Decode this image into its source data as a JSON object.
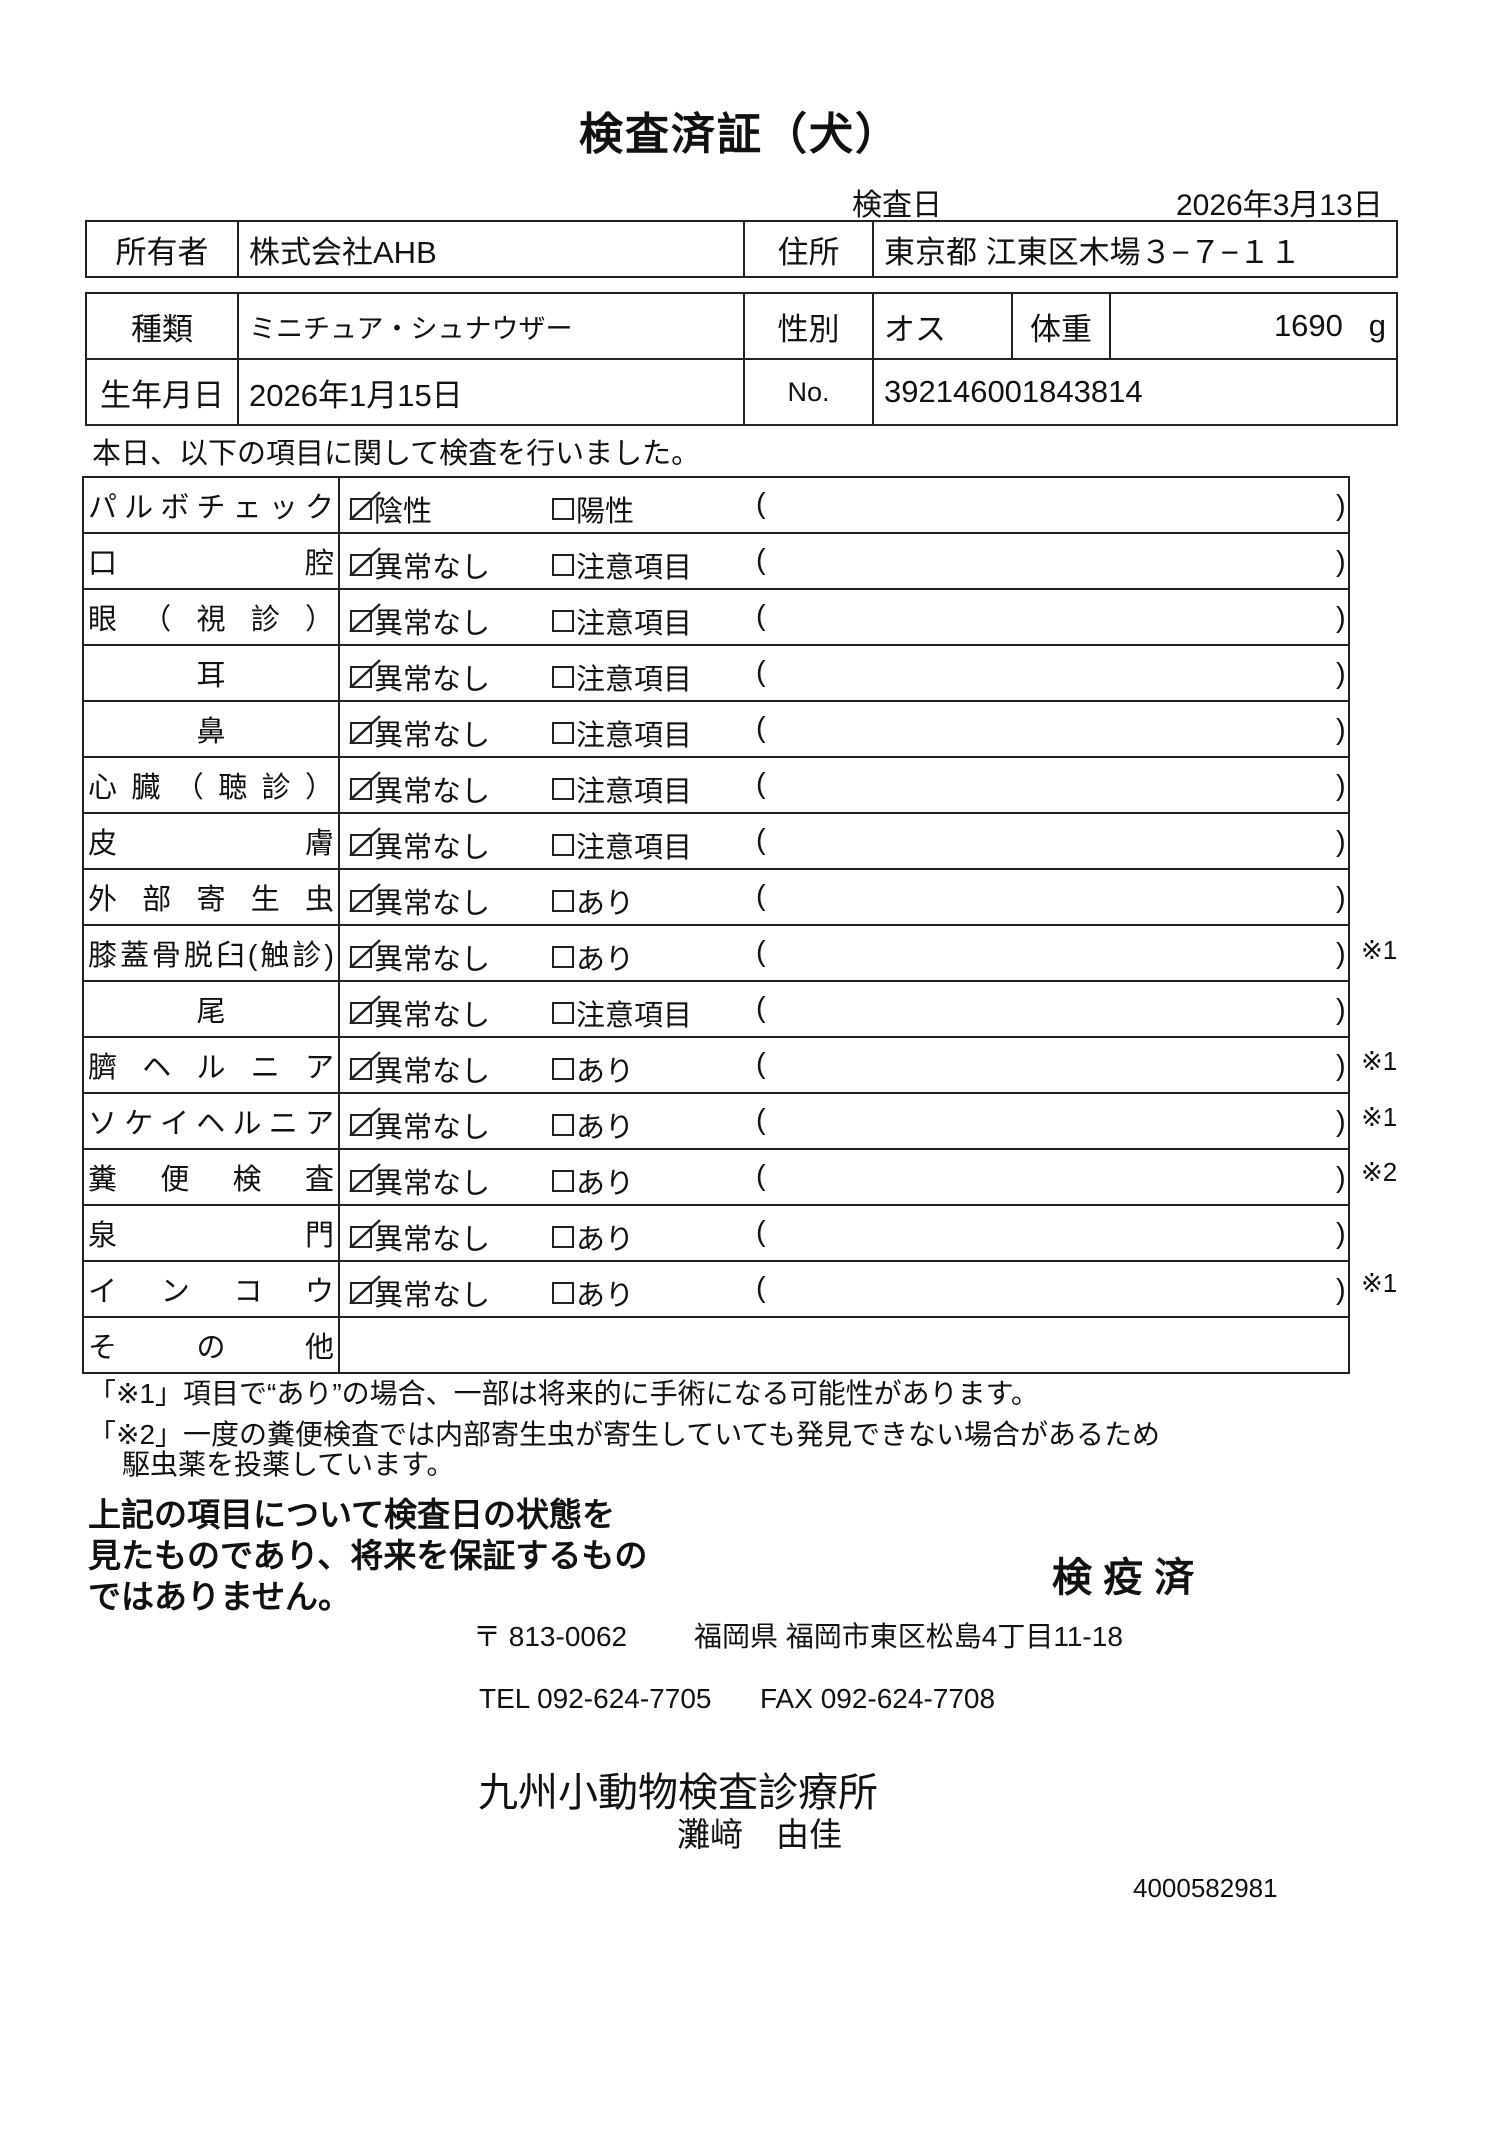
{
  "title": "検査済証（犬）",
  "exam_date": {
    "label": "検査日",
    "value": "2026年3月13日"
  },
  "owner": {
    "label": "所有者",
    "value": "株式会社AHB",
    "address_label": "住所",
    "address": "東京都 江東区木場３−７−１１"
  },
  "animal": {
    "breed_label": "種類",
    "breed": "ミニチュア・シュナウザー",
    "sex_label": "性別",
    "sex": "オス",
    "weight_label": "体重",
    "weight": "1690",
    "weight_unit": "g",
    "dob_label": "生年月日",
    "dob": "2026年1月15日",
    "no_label": "No.",
    "no": "392146001843814"
  },
  "intro": "本日、以下の項目に関して検査を行いました。",
  "paren_open": "(",
  "paren_close": ")",
  "checks": [
    {
      "label": "パルボチェック",
      "opt1": "陰性",
      "opt2": "陽性",
      "checked": 1,
      "note": ""
    },
    {
      "label": "口腔",
      "opt1": "異常なし",
      "opt2": "注意項目",
      "checked": 1,
      "note": ""
    },
    {
      "label": "眼（視診）",
      "opt1": "異常なし",
      "opt2": "注意項目",
      "checked": 1,
      "note": ""
    },
    {
      "label": "耳",
      "opt1": "異常なし",
      "opt2": "注意項目",
      "checked": 1,
      "note": ""
    },
    {
      "label": "鼻",
      "opt1": "異常なし",
      "opt2": "注意項目",
      "checked": 1,
      "note": ""
    },
    {
      "label": "心臓（聴診）",
      "opt1": "異常なし",
      "opt2": "注意項目",
      "checked": 1,
      "note": ""
    },
    {
      "label": "皮膚",
      "opt1": "異常なし",
      "opt2": "注意項目",
      "checked": 1,
      "note": ""
    },
    {
      "label": "外部寄生虫",
      "opt1": "異常なし",
      "opt2": "あり",
      "checked": 1,
      "note": ""
    },
    {
      "label": "膝蓋骨脱臼(触診)",
      "opt1": "異常なし",
      "opt2": "あり",
      "checked": 1,
      "note": "※1"
    },
    {
      "label": "尾",
      "opt1": "異常なし",
      "opt2": "注意項目",
      "checked": 1,
      "note": ""
    },
    {
      "label": "臍ヘルニア",
      "opt1": "異常なし",
      "opt2": "あり",
      "checked": 1,
      "note": "※1"
    },
    {
      "label": "ソケイヘルニア",
      "opt1": "異常なし",
      "opt2": "あり",
      "checked": 1,
      "note": "※1"
    },
    {
      "label": "糞便検査",
      "opt1": "異常なし",
      "opt2": "あり",
      "checked": 1,
      "note": "※2"
    },
    {
      "label": "泉門",
      "opt1": "異常なし",
      "opt2": "あり",
      "checked": 1,
      "note": ""
    },
    {
      "label": "インコウ",
      "opt1": "異常なし",
      "opt2": "あり",
      "checked": 1,
      "note": "※1"
    }
  ],
  "other_label": "その他",
  "notes": [
    "「※1」項目で“あり”の場合、一部は将来的に手術になる可能性があります。",
    "「※2」一度の糞便検査では内部寄生虫が寄生していても発見できない場合があるため",
    "駆虫薬を投薬しています。"
  ],
  "disclaimer": [
    "上記の項目について検査日の状態を",
    "見たものであり、将来を保証するもの",
    "ではありません。"
  ],
  "stamp": "検 疫 済",
  "clinic": {
    "postal": "〒 813-0062",
    "address": "福岡県 福岡市東区松島4丁目11-18",
    "tel": "TEL 092-624-7705",
    "fax": "FAX 092-624-7708",
    "name": "九州小動物検査診療所",
    "person": "灘﨑　由佳"
  },
  "doc_number": "4000582981"
}
